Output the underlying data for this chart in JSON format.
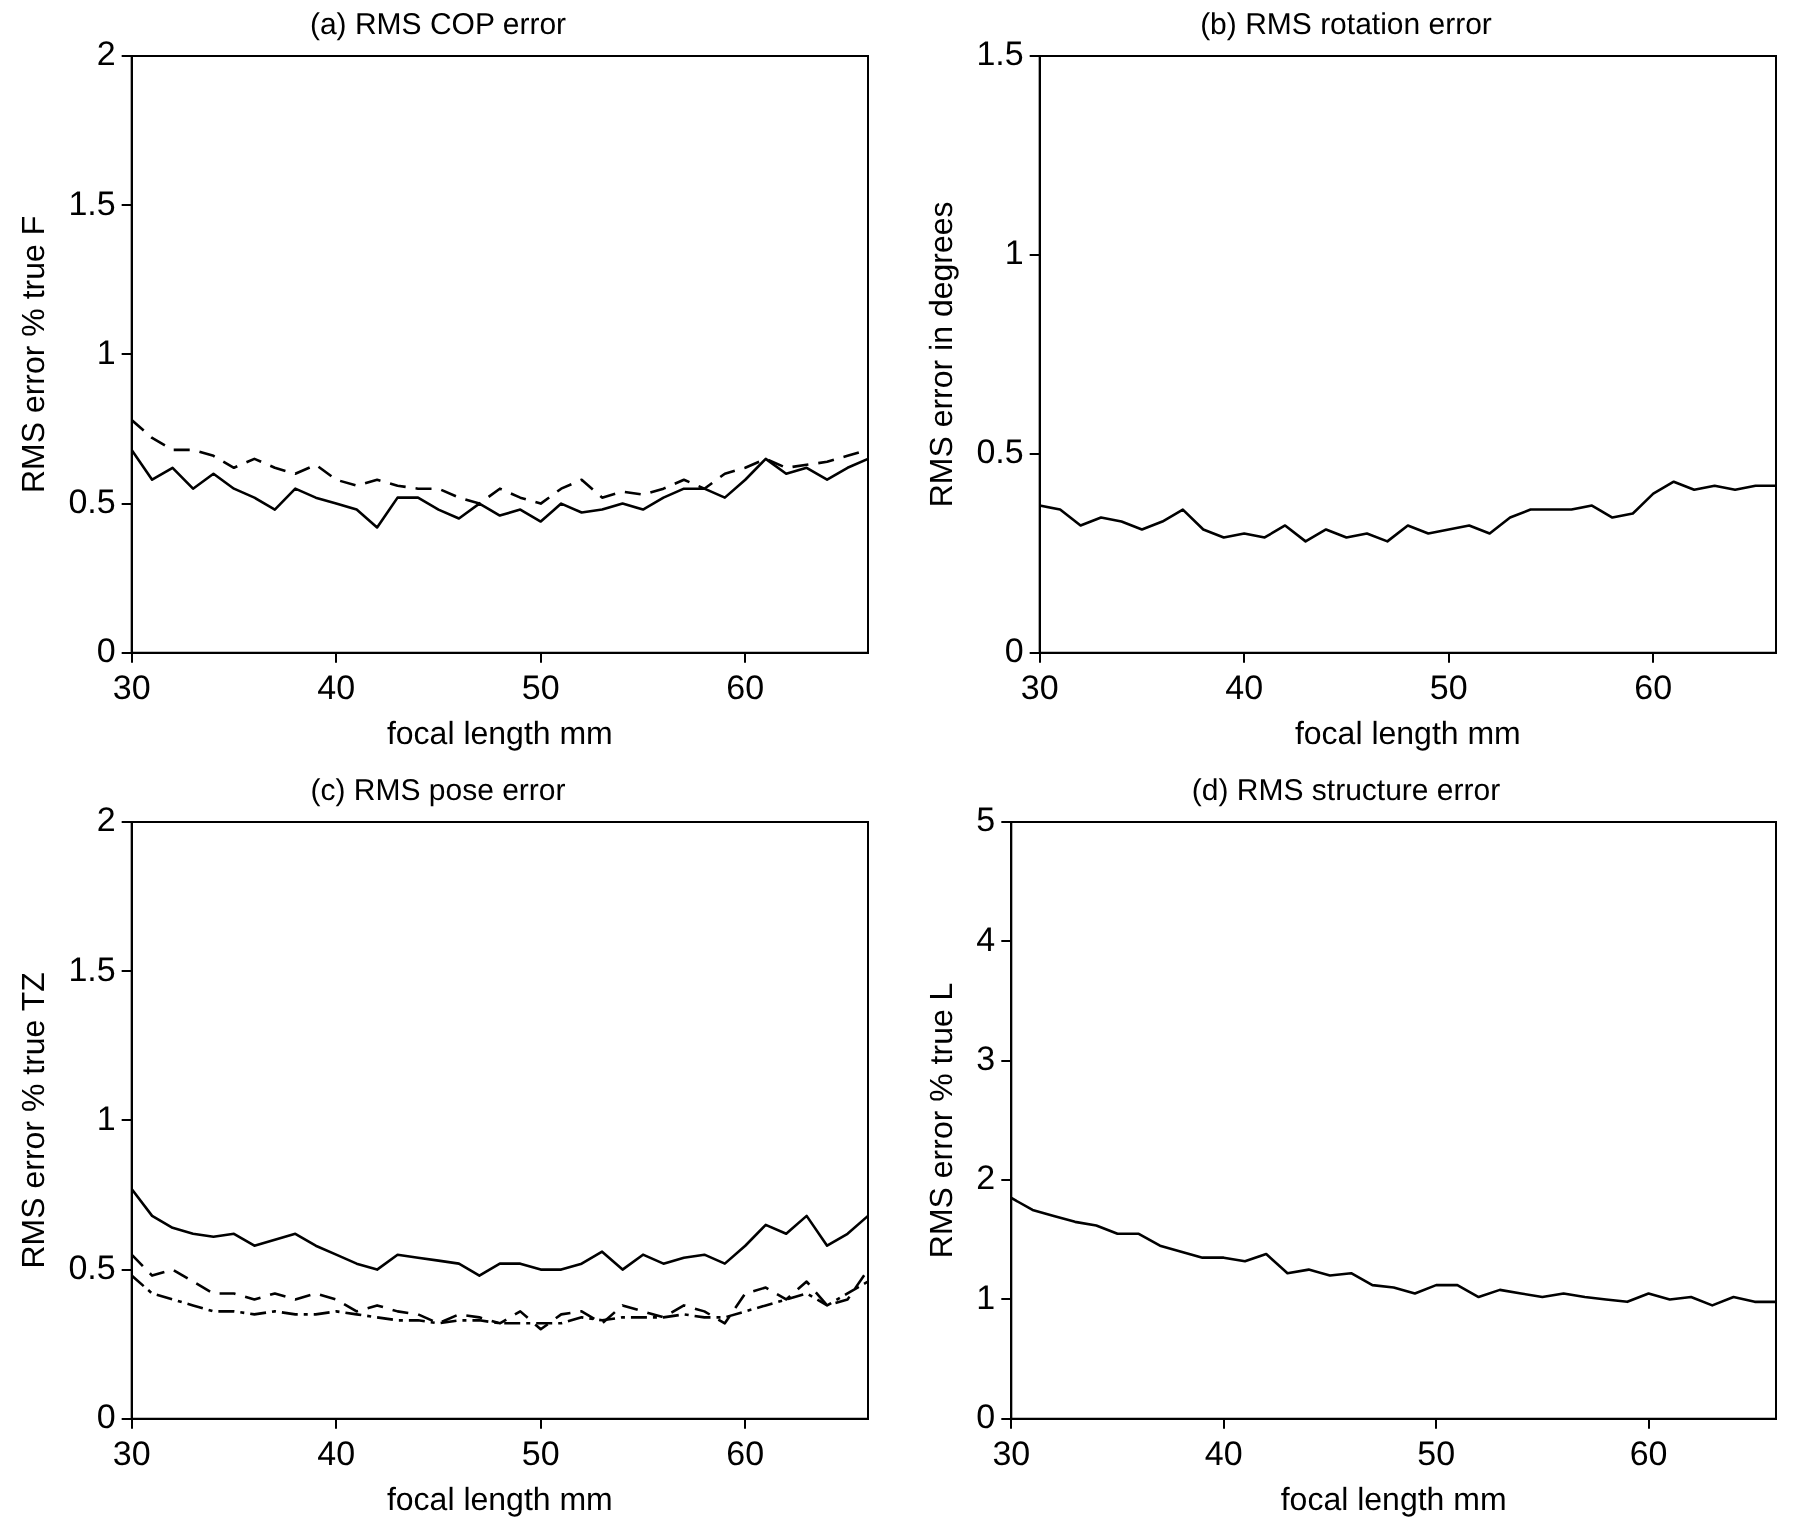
{
  "chart_data": [
    {
      "type": "line",
      "title": "(a) RMS COP error",
      "xlabel": "focal length mm",
      "ylabel": "RMS error % true F",
      "xlim": [
        30,
        66
      ],
      "xticks": [
        30,
        40,
        50,
        60
      ],
      "ylim": [
        0,
        2
      ],
      "yticks": [
        0,
        0.5,
        1,
        1.5,
        2
      ],
      "grid": false,
      "legend": false,
      "marker": "none",
      "x": [
        30,
        31,
        32,
        33,
        34,
        35,
        36,
        37,
        38,
        39,
        40,
        41,
        42,
        43,
        44,
        45,
        46,
        47,
        48,
        49,
        50,
        51,
        52,
        53,
        54,
        55,
        56,
        57,
        58,
        59,
        60,
        61,
        62,
        63,
        64,
        65,
        66
      ],
      "series": [
        {
          "color": "#000000",
          "line_style": "solid",
          "values": [
            0.68,
            0.58,
            0.62,
            0.55,
            0.6,
            0.55,
            0.52,
            0.48,
            0.55,
            0.52,
            0.5,
            0.48,
            0.42,
            0.52,
            0.52,
            0.48,
            0.45,
            0.5,
            0.46,
            0.48,
            0.44,
            0.5,
            0.47,
            0.48,
            0.5,
            0.48,
            0.52,
            0.55,
            0.55,
            0.52,
            0.58,
            0.65,
            0.6,
            0.62,
            0.58,
            0.62,
            0.65
          ]
        },
        {
          "color": "#000000",
          "line_style": "dashed",
          "values": [
            0.78,
            0.72,
            0.68,
            0.68,
            0.66,
            0.62,
            0.65,
            0.62,
            0.6,
            0.63,
            0.58,
            0.56,
            0.58,
            0.56,
            0.55,
            0.55,
            0.52,
            0.5,
            0.55,
            0.52,
            0.5,
            0.55,
            0.58,
            0.52,
            0.54,
            0.53,
            0.55,
            0.58,
            0.55,
            0.6,
            0.62,
            0.65,
            0.62,
            0.63,
            0.64,
            0.66,
            0.68
          ]
        }
      ]
    },
    {
      "type": "line",
      "title": "(b) RMS rotation error",
      "xlabel": "focal length mm",
      "ylabel": "RMS error in degrees",
      "xlim": [
        30,
        66
      ],
      "xticks": [
        30,
        40,
        50,
        60
      ],
      "ylim": [
        0,
        1.5
      ],
      "yticks": [
        0,
        0.5,
        1,
        1.5
      ],
      "grid": false,
      "legend": false,
      "marker": "none",
      "x": [
        30,
        31,
        32,
        33,
        34,
        35,
        36,
        37,
        38,
        39,
        40,
        41,
        42,
        43,
        44,
        45,
        46,
        47,
        48,
        49,
        50,
        51,
        52,
        53,
        54,
        55,
        56,
        57,
        58,
        59,
        60,
        61,
        62,
        63,
        64,
        65,
        66
      ],
      "series": [
        {
          "color": "#000000",
          "line_style": "solid",
          "values": [
            0.37,
            0.36,
            0.32,
            0.34,
            0.33,
            0.31,
            0.33,
            0.36,
            0.31,
            0.29,
            0.3,
            0.29,
            0.32,
            0.28,
            0.31,
            0.29,
            0.3,
            0.28,
            0.32,
            0.3,
            0.31,
            0.32,
            0.3,
            0.34,
            0.36,
            0.36,
            0.36,
            0.37,
            0.34,
            0.35,
            0.4,
            0.43,
            0.41,
            0.42,
            0.41,
            0.42,
            0.42
          ]
        }
      ]
    },
    {
      "type": "line",
      "title": "(c) RMS pose error",
      "xlabel": "focal length mm",
      "ylabel": "RMS error % true TZ",
      "xlim": [
        30,
        66
      ],
      "xticks": [
        30,
        40,
        50,
        60
      ],
      "ylim": [
        0,
        2
      ],
      "yticks": [
        0,
        0.5,
        1,
        1.5,
        2
      ],
      "grid": false,
      "legend": false,
      "marker": "none",
      "x": [
        30,
        31,
        32,
        33,
        34,
        35,
        36,
        37,
        38,
        39,
        40,
        41,
        42,
        43,
        44,
        45,
        46,
        47,
        48,
        49,
        50,
        51,
        52,
        53,
        54,
        55,
        56,
        57,
        58,
        59,
        60,
        61,
        62,
        63,
        64,
        65,
        66
      ],
      "series": [
        {
          "color": "#000000",
          "line_style": "solid",
          "values": [
            0.77,
            0.68,
            0.64,
            0.62,
            0.61,
            0.62,
            0.58,
            0.6,
            0.62,
            0.58,
            0.55,
            0.52,
            0.5,
            0.55,
            0.54,
            0.53,
            0.52,
            0.48,
            0.52,
            0.52,
            0.5,
            0.5,
            0.52,
            0.56,
            0.5,
            0.55,
            0.52,
            0.54,
            0.55,
            0.52,
            0.58,
            0.65,
            0.62,
            0.68,
            0.58,
            0.62,
            0.68
          ]
        },
        {
          "color": "#000000",
          "line_style": "dashed",
          "values": [
            0.55,
            0.48,
            0.5,
            0.46,
            0.42,
            0.42,
            0.4,
            0.42,
            0.4,
            0.42,
            0.4,
            0.36,
            0.38,
            0.36,
            0.35,
            0.32,
            0.35,
            0.34,
            0.32,
            0.36,
            0.3,
            0.35,
            0.36,
            0.32,
            0.38,
            0.36,
            0.34,
            0.38,
            0.36,
            0.32,
            0.42,
            0.44,
            0.4,
            0.46,
            0.38,
            0.4,
            0.5
          ]
        },
        {
          "color": "#000000",
          "line_style": "dotted",
          "values": [
            0.48,
            0.42,
            0.4,
            0.38,
            0.36,
            0.36,
            0.35,
            0.36,
            0.35,
            0.35,
            0.36,
            0.35,
            0.34,
            0.33,
            0.33,
            0.32,
            0.33,
            0.33,
            0.32,
            0.32,
            0.32,
            0.32,
            0.34,
            0.33,
            0.34,
            0.34,
            0.34,
            0.35,
            0.34,
            0.34,
            0.36,
            0.38,
            0.4,
            0.42,
            0.38,
            0.42,
            0.46
          ]
        }
      ]
    },
    {
      "type": "line",
      "title": "(d) RMS structure error",
      "xlabel": "focal length mm",
      "ylabel": "RMS error % true L",
      "xlim": [
        30,
        66
      ],
      "xticks": [
        30,
        40,
        50,
        60
      ],
      "ylim": [
        0,
        5
      ],
      "yticks": [
        0,
        1,
        2,
        3,
        4,
        5
      ],
      "grid": false,
      "legend": false,
      "marker": "none",
      "x": [
        30,
        31,
        32,
        33,
        34,
        35,
        36,
        37,
        38,
        39,
        40,
        41,
        42,
        43,
        44,
        45,
        46,
        47,
        48,
        49,
        50,
        51,
        52,
        53,
        54,
        55,
        56,
        57,
        58,
        59,
        60,
        61,
        62,
        63,
        64,
        65,
        66
      ],
      "series": [
        {
          "color": "#000000",
          "line_style": "solid",
          "values": [
            1.85,
            1.75,
            1.7,
            1.65,
            1.62,
            1.55,
            1.55,
            1.45,
            1.4,
            1.35,
            1.35,
            1.32,
            1.38,
            1.22,
            1.25,
            1.2,
            1.22,
            1.12,
            1.1,
            1.05,
            1.12,
            1.12,
            1.02,
            1.08,
            1.05,
            1.02,
            1.05,
            1.02,
            1,
            0.98,
            1.05,
            1,
            1.02,
            0.95,
            1.02,
            0.98,
            0.98
          ]
        }
      ]
    }
  ]
}
